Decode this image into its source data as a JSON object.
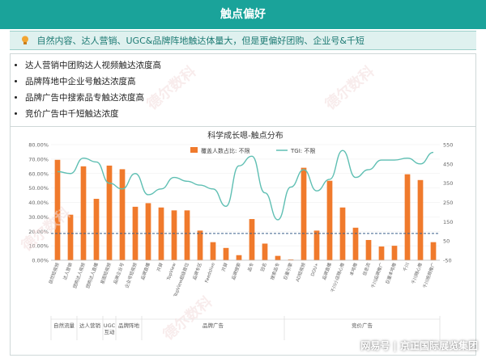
{
  "header": {
    "title": "触点偏好",
    "subtitle": "自然内容、达人营销、UGC&品牌阵地触达体量大，但是更偏好团购、企业号&千短"
  },
  "bullets": [
    "达人营销中团购达人视频触达浓度高",
    "品牌阵地中企业号触达浓度高",
    "品牌广告中搜索品专触达浓度高",
    "竞价广告中千短触达浓度"
  ],
  "watermark": "德尔数科",
  "footer": "网易号 | 京正国际展览集团",
  "chart_data": {
    "type": "bar",
    "title": "科学成长嗯-触点分布",
    "series": [
      {
        "name": "覆盖人数占比: 不限",
        "kind": "bar",
        "color": "#f07a2c",
        "values": [
          69.5,
          31.5,
          65,
          42.5,
          65.5,
          63,
          37,
          39.5,
          36.5,
          34.5,
          34.5,
          20.5,
          12.5,
          8.5,
          3.5,
          28.5,
          11.5,
          3,
          0.5,
          64,
          20.5,
          55,
          36.5,
          22.5,
          14,
          9.5,
          10,
          59.5,
          55.5,
          12.5
        ]
      },
      {
        "name": "TGI: 不限",
        "kind": "line",
        "color": "#5fbfb3",
        "values": [
          410,
          400,
          480,
          460,
          350,
          320,
          400,
          290,
          320,
          380,
          360,
          340,
          320,
          230,
          440,
          490,
          300,
          160,
          330,
          420,
          310,
          370,
          520,
          380,
          420,
          470,
          470,
          480,
          450,
          510
        ]
      }
    ],
    "yleft": {
      "min": 0,
      "max": 80,
      "ticks": [
        "0.00%",
        "10.00%",
        "20.00%",
        "30.00%",
        "40.00%",
        "50.00%",
        "60.00%",
        "70.00%",
        "80.00%"
      ]
    },
    "yright": {
      "min": -50,
      "max": 550,
      "ticks": [
        "-50",
        "50",
        "150",
        "250",
        "350",
        "450",
        "550"
      ]
    },
    "reference_line": 18.5,
    "categories": [
      "自然短视频",
      "达人营销",
      "团购达人视频",
      "团购达人直播",
      "星图短视频",
      "品牌企业号",
      "企业号短视频",
      "品牌直播",
      "开屏",
      "TopView",
      "TopView超级首位",
      "品牌专区",
      "Feedslive",
      "开屏",
      "品牌搜索",
      "品专",
      "冠名",
      "搜索品专",
      "巨量引擎",
      "AD短视频",
      "DOU+",
      "品牌直播",
      "千川小店随心推",
      "本地推",
      "信息流",
      "千川品牌推广",
      "巨量本地推",
      "千川",
      "千川随心推",
      "千川视频推广"
    ],
    "groups": [
      "自然流量",
      "达人营销",
      "UGC\n互动",
      "品牌阵地",
      "品牌广告",
      "竞价广告"
    ]
  }
}
